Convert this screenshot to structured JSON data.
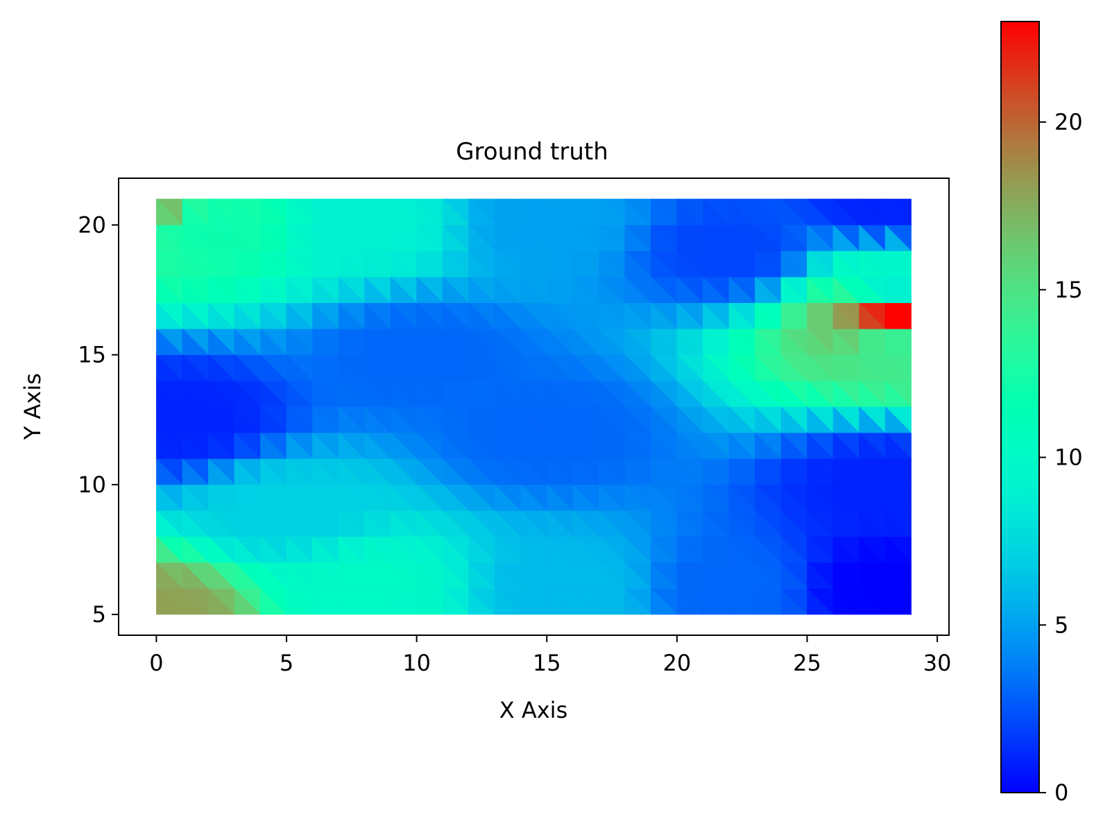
{
  "chart_data": {
    "type": "heatmap",
    "title": "Ground truth",
    "xlabel": "X Axis",
    "ylabel": "Y Axis",
    "xlim": [
      -1.45,
      30.45
    ],
    "ylim": [
      4.2,
      21.8
    ],
    "data_extent": {
      "x": [
        0,
        29
      ],
      "y": [
        5,
        21
      ]
    },
    "xticks": [
      0,
      5,
      10,
      15,
      20,
      25,
      30
    ],
    "yticks": [
      5,
      10,
      15,
      20
    ],
    "colormap": "rainbow",
    "colorbar": {
      "vmin": 0,
      "vmax": 23,
      "ticks": [
        0,
        5,
        10,
        15,
        20
      ]
    },
    "grid": false,
    "legend": "none",
    "mesh": "triangulated grid, cells split along diagonals from top-left to bottom-right",
    "field_sample_points": [
      {
        "x": 0,
        "y": 21,
        "v": 17
      },
      {
        "x": 0,
        "y": 5,
        "v": 18
      },
      {
        "x": 2,
        "y": 20,
        "v": 12
      },
      {
        "x": 8,
        "y": 20,
        "v": 9
      },
      {
        "x": 15,
        "y": 20,
        "v": 5
      },
      {
        "x": 22,
        "y": 19,
        "v": 2
      },
      {
        "x": 28,
        "y": 21,
        "v": 1
      },
      {
        "x": 28.5,
        "y": 16.5,
        "v": 23
      },
      {
        "x": 28.5,
        "y": 17.5,
        "v": 9
      },
      {
        "x": 28.5,
        "y": 15.5,
        "v": 14
      },
      {
        "x": 1,
        "y": 12.5,
        "v": 1
      },
      {
        "x": 10,
        "y": 15,
        "v": 3
      },
      {
        "x": 5,
        "y": 9,
        "v": 7
      },
      {
        "x": 8,
        "y": 6,
        "v": 10
      },
      {
        "x": 16,
        "y": 6,
        "v": 6
      },
      {
        "x": 22,
        "y": 6,
        "v": 3
      },
      {
        "x": 28,
        "y": 6,
        "v": 0
      },
      {
        "x": 28,
        "y": 10,
        "v": 1
      },
      {
        "x": 15,
        "y": 12,
        "v": 3
      }
    ],
    "colors": {
      "axis": "#000000",
      "background": "#ffffff"
    }
  }
}
